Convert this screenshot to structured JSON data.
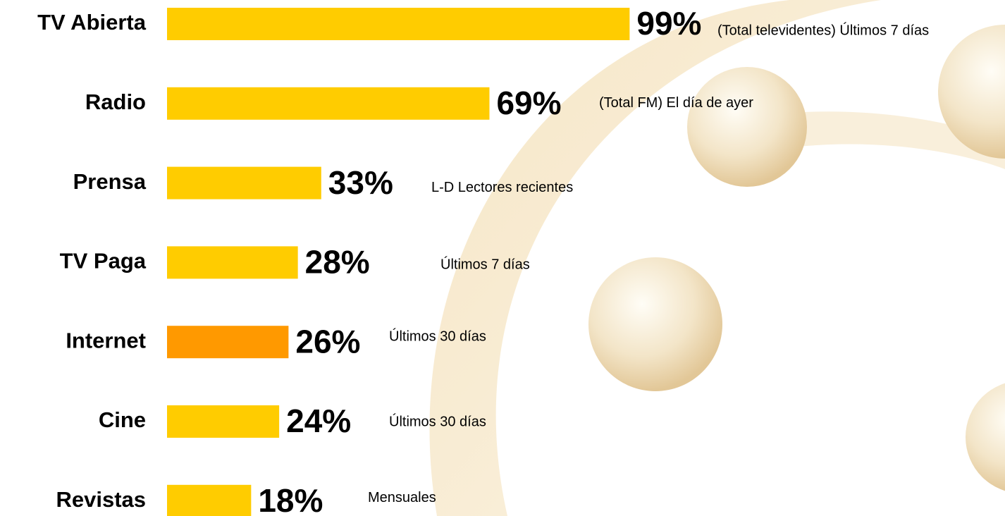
{
  "chart_data": {
    "type": "bar",
    "orientation": "horizontal",
    "categories": [
      "TV Abierta",
      "Radio",
      "Prensa",
      "TV Paga",
      "Internet",
      "Cine",
      "Revistas"
    ],
    "values": [
      99,
      69,
      33,
      28,
      26,
      24,
      18
    ],
    "value_labels": [
      "99%",
      "69%",
      "33%",
      "28%",
      "26%",
      "24%",
      "18%"
    ],
    "notes": [
      "(Total televidentes) Últimos 7 días",
      "(Total FM) El día de ayer",
      "L-D Lectores recientes",
      "Últimos 7 días",
      "Últimos 30 días",
      "Últimos 30 días",
      "Mensuales"
    ],
    "colors": [
      "#ffcc00",
      "#ffcc00",
      "#ffcc00",
      "#ffcc00",
      "#ff9900",
      "#ffcc00",
      "#ffcc00"
    ],
    "xlim": [
      0,
      100
    ]
  }
}
